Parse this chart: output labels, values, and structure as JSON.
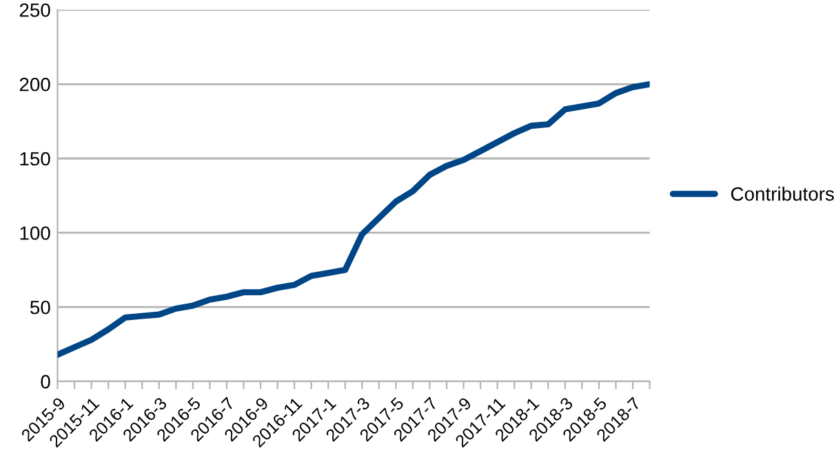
{
  "chart_data": {
    "type": "line",
    "categories": [
      "2015-9",
      null,
      "2015-11",
      null,
      "2016-1",
      null,
      "2016-3",
      null,
      "2016-5",
      null,
      "2016-7",
      null,
      "2016-9",
      null,
      "2016-11",
      null,
      "2017-1",
      null,
      "2017-3",
      null,
      "2017-5",
      null,
      "2017-7",
      null,
      "2017-9",
      null,
      "2017-11",
      null,
      "2018-1",
      null,
      "2018-3",
      null,
      "2018-5",
      null,
      "2018-7",
      null
    ],
    "series": [
      {
        "name": "Contributors",
        "color": "#004586",
        "values": [
          18,
          23,
          28,
          35,
          43,
          44,
          45,
          49,
          51,
          55,
          57,
          60,
          60,
          63,
          65,
          71,
          73,
          75,
          99,
          110,
          121,
          128,
          139,
          145,
          149,
          155,
          161,
          167,
          172,
          173,
          183,
          185,
          187,
          194,
          198,
          200
        ]
      }
    ],
    "ylim": [
      0,
      250
    ],
    "yticks": [
      0,
      50,
      100,
      150,
      200,
      250
    ],
    "grid": "y",
    "legend": "right",
    "marker": "none",
    "line_style": "solid"
  }
}
